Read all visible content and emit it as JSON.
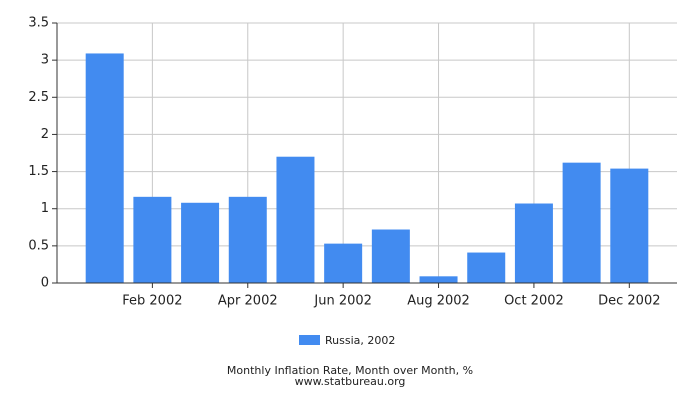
{
  "chart_data": {
    "type": "bar",
    "title": "Monthly Inflation Rate, Month over Month, %",
    "subtitle": "www.statbureau.org",
    "categories": [
      null,
      "Feb 2002",
      null,
      "Apr 2002",
      null,
      "Jun 2002",
      null,
      "Aug 2002",
      null,
      "Oct 2002",
      null,
      "Dec 2002"
    ],
    "series": [
      {
        "name": "Russia, 2002",
        "color": "#428bf0",
        "values": [
          3.09,
          1.16,
          1.08,
          1.16,
          1.7,
          0.53,
          0.72,
          0.09,
          0.41,
          1.07,
          1.62,
          1.54
        ]
      }
    ],
    "ylim": [
      0,
      3.5
    ],
    "yticks": [
      0,
      0.5,
      1,
      1.5,
      2,
      2.5,
      3,
      3.5
    ],
    "grid": true,
    "legend": "bottom"
  }
}
